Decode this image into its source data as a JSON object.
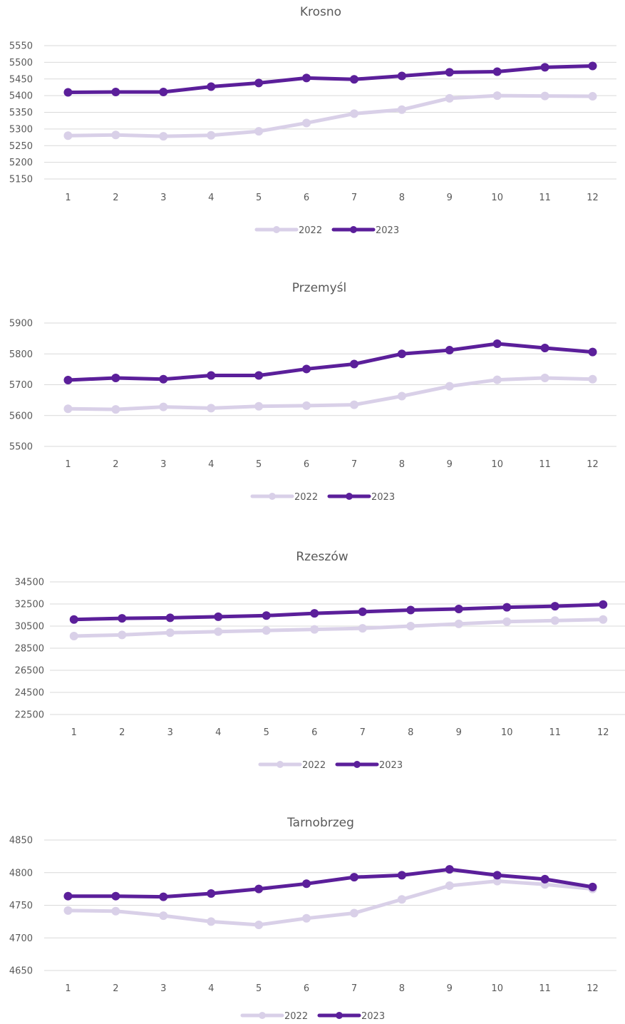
{
  "colors": {
    "series_2022": "#d9d0e8",
    "series_2023": "#5b1f9a",
    "grid": "#d9d9d9",
    "text": "#595959"
  },
  "chart_data": [
    {
      "type": "line",
      "title": "Krosno",
      "x": [
        1,
        2,
        3,
        4,
        5,
        6,
        7,
        8,
        9,
        10,
        11,
        12
      ],
      "ylim": [
        5150,
        5550
      ],
      "yticks": [
        5150,
        5200,
        5250,
        5300,
        5350,
        5400,
        5450,
        5500,
        5550
      ],
      "grid": true,
      "legend": "bottom",
      "series": [
        {
          "name": "2022",
          "values": [
            5280,
            5282,
            5278,
            5281,
            5293,
            5318,
            5346,
            5358,
            5392,
            5400,
            5399,
            5398
          ]
        },
        {
          "name": "2023",
          "values": [
            5410,
            5411,
            5411,
            5427,
            5438,
            5453,
            5449,
            5459,
            5470,
            5472,
            5485,
            5489
          ]
        }
      ]
    },
    {
      "type": "line",
      "title": "Przemyśl",
      "x": [
        1,
        2,
        3,
        4,
        5,
        6,
        7,
        8,
        9,
        10,
        11,
        12
      ],
      "ylim": [
        5500,
        5900
      ],
      "yticks": [
        5500,
        5600,
        5700,
        5800,
        5900
      ],
      "grid": true,
      "legend": "bottom",
      "series": [
        {
          "name": "2022",
          "values": [
            5622,
            5620,
            5628,
            5624,
            5630,
            5632,
            5635,
            5663,
            5695,
            5716,
            5722,
            5718
          ]
        },
        {
          "name": "2023",
          "values": [
            5715,
            5722,
            5718,
            5730,
            5730,
            5751,
            5767,
            5800,
            5812,
            5833,
            5819,
            5806
          ]
        }
      ]
    },
    {
      "type": "line",
      "title": "Rzeszów",
      "x": [
        1,
        2,
        3,
        4,
        5,
        6,
        7,
        8,
        9,
        10,
        11,
        12
      ],
      "ylim": [
        22500,
        34500
      ],
      "yticks": [
        22500,
        24500,
        26500,
        28500,
        30500,
        32500,
        34500
      ],
      "grid": true,
      "legend": "bottom",
      "series": [
        {
          "name": "2022",
          "values": [
            29600,
            29700,
            29900,
            30000,
            30100,
            30200,
            30300,
            30500,
            30700,
            30900,
            31000,
            31100
          ]
        },
        {
          "name": "2023",
          "values": [
            31100,
            31200,
            31250,
            31350,
            31450,
            31650,
            31800,
            31950,
            32050,
            32200,
            32300,
            32450
          ]
        }
      ]
    },
    {
      "type": "line",
      "title": "Tarnobrzeg",
      "x": [
        1,
        2,
        3,
        4,
        5,
        6,
        7,
        8,
        9,
        10,
        11,
        12
      ],
      "ylim": [
        4650,
        4850
      ],
      "yticks": [
        4650,
        4700,
        4750,
        4800,
        4850
      ],
      "grid": true,
      "legend": "bottom",
      "series": [
        {
          "name": "2022",
          "values": [
            4742,
            4741,
            4734,
            4725,
            4720,
            4730,
            4738,
            4759,
            4780,
            4787,
            4782,
            4775
          ]
        },
        {
          "name": "2023",
          "values": [
            4764,
            4764,
            4763,
            4768,
            4775,
            4783,
            4793,
            4796,
            4805,
            4796,
            4790,
            4778
          ]
        }
      ]
    }
  ]
}
